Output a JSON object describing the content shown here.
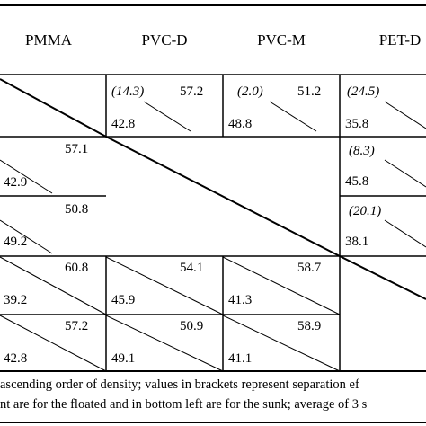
{
  "table": {
    "columns": [
      "PMMA",
      "PVC-D",
      "PVC-M",
      "PET-D"
    ],
    "cells": [
      {
        "id": "r1c2",
        "sep": "(14.3)",
        "floated": "57.2",
        "sunk": "42.8"
      },
      {
        "id": "r1c3",
        "sep": "(2.0)",
        "floated": "51.2",
        "sunk": "48.8"
      },
      {
        "id": "r1c4",
        "sep": "(24.5)",
        "floated": "",
        "sunk": "35.8"
      },
      {
        "id": "r2c1",
        "sep": "",
        "floated": "57.1",
        "sunk": "42.9"
      },
      {
        "id": "r2c4",
        "sep": "(8.3)",
        "floated": "",
        "sunk": "45.8"
      },
      {
        "id": "r3c1",
        "sep": "",
        "floated": "50.8",
        "sunk": "49.2"
      },
      {
        "id": "r3c4",
        "sep": "(20.1)",
        "floated": "",
        "sunk": "38.1"
      },
      {
        "id": "r4c1",
        "sep": "",
        "floated": "60.8",
        "sunk": "39.2"
      },
      {
        "id": "r4c2",
        "sep": "",
        "floated": "54.1",
        "sunk": "45.9"
      },
      {
        "id": "r4c3",
        "sep": "",
        "floated": "58.7",
        "sunk": "41.3"
      },
      {
        "id": "r5c1",
        "sep": "",
        "floated": "57.2",
        "sunk": "42.8"
      },
      {
        "id": "r5c2",
        "sep": "",
        "floated": "50.9",
        "sunk": "49.1"
      },
      {
        "id": "r5c3",
        "sep": "",
        "floated": "58.9",
        "sunk": "41.1"
      }
    ]
  },
  "footnote": {
    "line1": "ascending order of density; values in brackets represent separation ef",
    "line2": "nt are for the floated and in bottom left are for the sunk; average of 3 s"
  }
}
